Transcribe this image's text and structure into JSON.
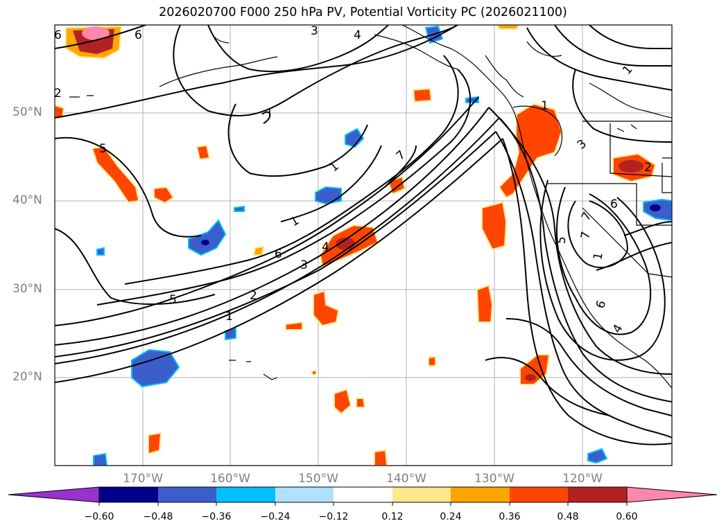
{
  "title": "2026020700 F000 250 hPa PV, Potential Vorticity PC (2026021100)",
  "lat_labels": [
    "50°N",
    "40°N",
    "30°N",
    "20°N"
  ],
  "lon_labels": [
    "170°W",
    "160°W",
    "150°W",
    "140°W",
    "130°W",
    "120°W"
  ],
  "colorbar": {
    "ticks": [
      "−0.60",
      "−0.48",
      "−0.36",
      "−0.24",
      "−0.12",
      "0.12",
      "0.24",
      "0.36",
      "0.48",
      "0.60"
    ],
    "colors": [
      "#9932cc",
      "#00008b",
      "#3a5fcd",
      "#00bfff",
      "#b0e2ff",
      "#ffffff",
      "#ffe88c",
      "#ffa500",
      "#ff4500",
      "#b22222",
      "#ff88aa"
    ]
  },
  "contour_labels": [
    "6",
    "6",
    "3",
    "4",
    "1",
    "5",
    "2",
    "6",
    "1",
    "1",
    "1",
    "7",
    "7",
    "7",
    "4",
    "6",
    "3",
    "5",
    "2",
    "1",
    "3",
    "2",
    "5",
    "7",
    "1",
    "6",
    "4"
  ],
  "colors": {
    "contour": "#000000",
    "grid": "#b0b0b0",
    "coast": "#000000"
  }
}
